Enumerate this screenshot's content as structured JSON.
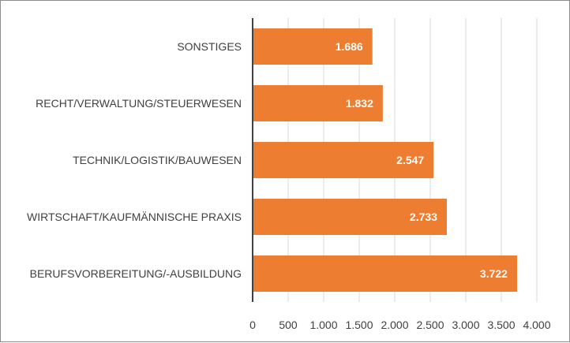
{
  "chart_data": {
    "type": "bar",
    "orientation": "horizontal",
    "title": "",
    "xlabel": "",
    "ylabel": "",
    "categories": [
      "SONSTIGES",
      "RECHT/VERWALTUNG/STEUERWESEN",
      "TECHNIK/LOGISTIK/BAUWESEN",
      "WIRTSCHAFT/KAUFMÄNNISCHE PRAXIS",
      "BERUFSVORBEREITUNG/-AUSBILDUNG"
    ],
    "values": [
      1686,
      1832,
      2547,
      2733,
      3722
    ],
    "data_labels": [
      "1.686",
      "1.832",
      "2.547",
      "2.733",
      "3.722"
    ],
    "xlim": [
      0,
      4000
    ],
    "x_ticks": [
      0,
      500,
      1000,
      1500,
      2000,
      2500,
      3000,
      3500,
      4000
    ],
    "x_tick_labels": [
      "0",
      "500",
      "1.000",
      "1.500",
      "2.000",
      "2.500",
      "3.000",
      "3.500",
      "4.000"
    ],
    "grid": true,
    "legend": "none",
    "bar_color": "#ED7D31",
    "grid_color": "#D9D9D9",
    "axis_color": "#404040"
  }
}
